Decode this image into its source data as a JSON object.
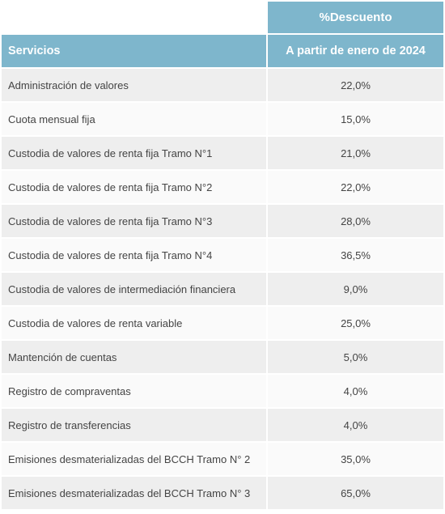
{
  "table": {
    "discount_header": "%Descuento",
    "col_service": "Servicios",
    "col_period": "A partir de enero de 2024",
    "rows": [
      {
        "service": "Administración de valores",
        "value": "22,0%"
      },
      {
        "service": "Cuota mensual fija",
        "value": "15,0%"
      },
      {
        "service": "Custodia de valores de renta fija Tramo N°1",
        "value": "21,0%"
      },
      {
        "service": "Custodia de valores de renta fija Tramo N°2",
        "value": "22,0%"
      },
      {
        "service": "Custodia de valores de renta fija Tramo N°3",
        "value": "28,0%"
      },
      {
        "service": "Custodia de valores de renta fija Tramo N°4",
        "value": "36,5%"
      },
      {
        "service": "Custodia de valores de intermediación financiera",
        "value": "9,0%"
      },
      {
        "service": "Custodia de valores de renta variable",
        "value": "25,0%"
      },
      {
        "service": "Mantención de cuentas",
        "value": "5,0%"
      },
      {
        "service": "Registro de compraventas",
        "value": "4,0%"
      },
      {
        "service": "Registro de transferencias",
        "value": "4,0%"
      },
      {
        "service": "Emisiones desmaterializadas del BCCH Tramo N° 2",
        "value": "35,0%"
      },
      {
        "service": "Emisiones desmaterializadas del BCCH Tramo N° 3",
        "value": "65,0%"
      }
    ],
    "colors": {
      "header_bg": "#7eb6cc",
      "header_text": "#ffffff",
      "row_odd_bg": "#eeeeee",
      "row_even_bg": "#fafafa",
      "text": "#444444"
    }
  }
}
